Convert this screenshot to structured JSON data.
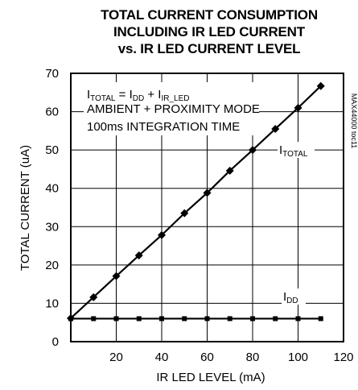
{
  "chart_data": {
    "type": "line",
    "title_lines": [
      "TOTAL CURRENT CONSUMPTION",
      "INCLUDING IR LED CURRENT",
      "vs. IR LED CURRENT LEVEL"
    ],
    "xlabel": "IR LED LEVEL (mA)",
    "ylabel": "TOTAL CURRENT (uA)",
    "xlim": [
      0,
      120
    ],
    "ylim": [
      0,
      70
    ],
    "xticks": [
      "20",
      "40",
      "60",
      "80",
      "100",
      "120"
    ],
    "yticks": [
      "0",
      "10",
      "20",
      "30",
      "40",
      "50",
      "60",
      "70"
    ],
    "grid": true,
    "side_label": "MAX44000 toc11",
    "annotations": {
      "equation": {
        "lhs_main": "I",
        "lhs_sub": "TOTAL",
        "eq": " = I",
        "rhs1_sub": "DD",
        "plus": " + I",
        "rhs2_sub": "IR_LED"
      },
      "mode": "AMBIENT + PROXIMITY MODE",
      "integration": "100ms INTEGRATION TIME"
    },
    "series": [
      {
        "name_main": "I",
        "name_sub": "TOTAL",
        "marker": "diamond",
        "color": "#000000",
        "x": [
          0,
          10,
          20,
          30,
          40,
          50,
          60,
          70,
          80,
          90,
          100,
          110
        ],
        "values": [
          6.1,
          11.6,
          17.1,
          22.5,
          27.8,
          33.5,
          38.8,
          44.6,
          50.0,
          55.5,
          61.0,
          66.7
        ]
      },
      {
        "name_main": "I",
        "name_sub": "DD",
        "marker": "square",
        "color": "#000000",
        "x": [
          0,
          10,
          20,
          30,
          40,
          50,
          60,
          70,
          80,
          90,
          100,
          110
        ],
        "values": [
          6.0,
          6.0,
          6.0,
          6.0,
          6.0,
          6.0,
          6.0,
          6.0,
          6.0,
          6.0,
          6.0,
          6.0
        ]
      }
    ]
  }
}
